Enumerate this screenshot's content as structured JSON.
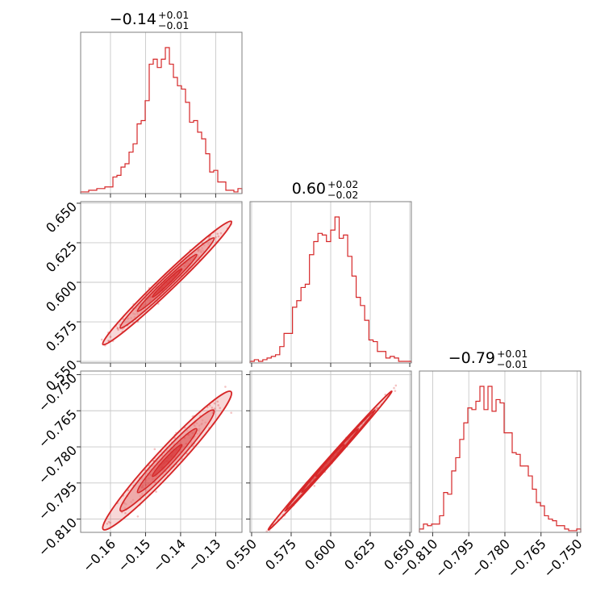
{
  "chart_data": {
    "type": "corner",
    "color": "#d62728",
    "grid": true,
    "parameters": [
      {
        "title": {
          "value": "−0.14",
          "plus": "+0.01",
          "minus": "−0.01"
        },
        "range": [
          -0.1685,
          -0.1225
        ],
        "ticks": [
          -0.16,
          -0.15,
          -0.14,
          -0.13
        ],
        "tick_labels": [
          "−0.16",
          "−0.15",
          "−0.14",
          "−0.13"
        ],
        "hist": [
          1,
          1,
          2,
          2,
          3,
          3,
          4,
          4,
          10,
          11,
          16,
          18,
          25,
          30,
          42,
          44,
          56,
          78,
          81,
          76,
          81,
          88,
          78,
          70,
          65,
          63,
          55,
          43,
          44,
          37,
          33,
          24,
          13,
          14,
          7,
          7,
          2,
          2,
          1,
          3
        ]
      },
      {
        "title": {
          "value": "0.60",
          "plus": "+0.02",
          "minus": "−0.02"
        },
        "range": [
          0.549,
          0.651
        ],
        "ticks": [
          0.55,
          0.575,
          0.6,
          0.625,
          0.65
        ],
        "tick_labels": [
          "0.550",
          "0.575",
          "0.600",
          "0.625",
          "0.650"
        ],
        "hist": [
          1,
          2,
          1,
          2,
          3,
          4,
          5,
          10,
          18,
          18,
          34,
          38,
          46,
          48,
          66,
          74,
          79,
          78,
          74,
          81,
          89,
          76,
          78,
          65,
          53,
          40,
          35,
          26,
          14,
          13,
          7,
          7,
          3,
          4,
          3,
          1,
          1,
          1
        ]
      },
      {
        "title": {
          "value": "−0.79",
          "plus": "+0.01",
          "minus": "−0.01"
        },
        "range": [
          -0.8155,
          -0.7485
        ],
        "ticks": [
          -0.81,
          -0.795,
          -0.78,
          -0.765,
          -0.75
        ],
        "tick_labels": [
          "−0.810",
          "−0.795",
          "−0.780",
          "−0.765",
          "−0.750"
        ],
        "hist": [
          2,
          5,
          4,
          5,
          5,
          10,
          24,
          23,
          37,
          45,
          56,
          66,
          75,
          74,
          79,
          88,
          74,
          88,
          73,
          80,
          78,
          60,
          60,
          48,
          47,
          40,
          40,
          34,
          26,
          18,
          16,
          10,
          8,
          7,
          4,
          4,
          2,
          1,
          1,
          2
        ]
      }
    ],
    "correlations": {
      "1,0": 0.985,
      "2,0": 0.97,
      "2,1": 0.998
    }
  }
}
